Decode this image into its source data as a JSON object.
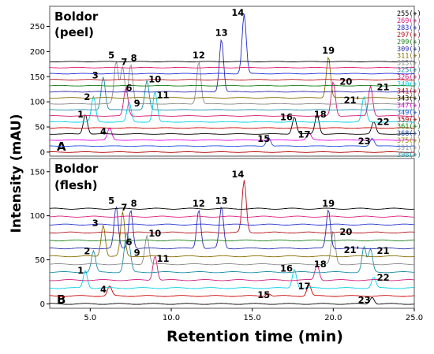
{
  "figure": {
    "y_axis_label": "Intensity (mAU)",
    "x_axis_label": "Retention time (min)"
  },
  "legend": [
    {
      "label": "255(+)",
      "color": "#000000"
    },
    {
      "label": "269(+)",
      "color": "#e0197d"
    },
    {
      "label": "283(+)",
      "color": "#1f2bd1"
    },
    {
      "label": "297(+)",
      "color": "#b5121b"
    },
    {
      "label": "299(+)",
      "color": "#1a7f1a"
    },
    {
      "label": "309(+)",
      "color": "#2b2bb0"
    },
    {
      "label": "311(+)",
      "color": "#8a6d00"
    },
    {
      "label": "313(+)",
      "color": "#8c8c8c"
    },
    {
      "label": "325(+)",
      "color": "#1d8fa6"
    },
    {
      "label": "326(+)",
      "color": "#d11a7a"
    },
    {
      "label": "340(+)",
      "color": "#00d0e8"
    },
    {
      "label": "341(+)",
      "color": "#cc0000"
    },
    {
      "label": "343(+)",
      "color": "#000000"
    },
    {
      "label": "347(+)",
      "color": "#e600e6"
    },
    {
      "label": "349(+)",
      "color": "#1f4de0"
    },
    {
      "label": "359(+)",
      "color": "#b50000"
    },
    {
      "label": "361(+)",
      "color": "#008000"
    },
    {
      "label": "368(+)",
      "color": "#1c3f99"
    },
    {
      "label": "375(+)",
      "color": "#9a8a00"
    },
    {
      "label": "391(+)",
      "color": "#999999"
    },
    {
      "label": "398(+)",
      "color": "#0097a7"
    }
  ],
  "chart_data": [
    {
      "type": "line",
      "title": "Boldor\n(peel)",
      "panel_letter": "A",
      "xlabel": "Retention time (min)",
      "ylabel": "Intensity (mAU)",
      "xlim": [
        2.5,
        25
      ],
      "ylim": [
        -8,
        290
      ],
      "yticks": [
        0,
        50,
        100,
        150,
        200,
        250
      ],
      "trace_offsets": [
        0,
        12,
        24,
        36,
        48,
        60,
        72,
        84,
        96,
        108,
        120,
        132,
        144,
        156,
        168,
        180
      ],
      "peaks": [
        {
          "label": "1",
          "rt": 4.7,
          "height": 75
        },
        {
          "label": "2",
          "rt": 5.2,
          "height": 110
        },
        {
          "label": "3",
          "rt": 5.8,
          "height": 150
        },
        {
          "label": "4",
          "rt": 6.2,
          "height": 48
        },
        {
          "label": "5",
          "rt": 6.6,
          "height": 180
        },
        {
          "label": "6",
          "rt": 7.2,
          "height": 128
        },
        {
          "label": "7",
          "rt": 7.0,
          "height": 170
        },
        {
          "label": "8",
          "rt": 7.5,
          "height": 175
        },
        {
          "label": "9",
          "rt": 7.4,
          "height": 100
        },
        {
          "label": "10",
          "rt": 8.5,
          "height": 142
        },
        {
          "label": "11",
          "rt": 9.0,
          "height": 120
        },
        {
          "label": "12",
          "rt": 11.7,
          "height": 180
        },
        {
          "label": "13",
          "rt": 13.1,
          "height": 225
        },
        {
          "label": "14",
          "rt": 14.5,
          "height": 275
        },
        {
          "label": "15",
          "rt": 16.0,
          "height": 30
        },
        {
          "label": "16",
          "rt": 17.6,
          "height": 70
        },
        {
          "label": "17",
          "rt": 18.5,
          "height": 38
        },
        {
          "label": "18",
          "rt": 19.0,
          "height": 75
        },
        {
          "label": "19",
          "rt": 19.7,
          "height": 190
        },
        {
          "label": "20",
          "rt": 20.0,
          "height": 140
        },
        {
          "label": "21",
          "rt": 22.3,
          "height": 132
        },
        {
          "label": "21'",
          "rt": 21.9,
          "height": 110
        },
        {
          "label": "22",
          "rt": 22.5,
          "height": 60
        },
        {
          "label": "23",
          "rt": 22.4,
          "height": 28
        }
      ]
    },
    {
      "type": "line",
      "title": "Boldor\n(flesh)",
      "panel_letter": "B",
      "xlabel": "Retention time (min)",
      "ylabel": "Intensity (mAU)",
      "xlim": [
        2.5,
        25
      ],
      "ylim": [
        -5,
        165
      ],
      "yticks": [
        0,
        50,
        100,
        150
      ],
      "xticks": [
        5.0,
        10.0,
        15.0,
        20.0,
        25.0
      ],
      "xtick_labels": [
        "5.0",
        "10.0",
        "15.0",
        "20.0",
        "25.0"
      ],
      "trace_offsets": [
        0,
        9,
        18,
        27,
        36,
        45,
        54,
        63,
        72,
        81,
        90,
        99,
        108
      ],
      "peaks": [
        {
          "label": "1",
          "rt": 4.7,
          "height": 38
        },
        {
          "label": "2",
          "rt": 5.2,
          "height": 60
        },
        {
          "label": "3",
          "rt": 5.8,
          "height": 90
        },
        {
          "label": "4",
          "rt": 6.2,
          "height": 20
        },
        {
          "label": "5",
          "rt": 6.6,
          "height": 110
        },
        {
          "label": "6",
          "rt": 7.2,
          "height": 70
        },
        {
          "label": "7",
          "rt": 7.0,
          "height": 104
        },
        {
          "label": "8",
          "rt": 7.5,
          "height": 107
        },
        {
          "label": "9",
          "rt": 7.4,
          "height": 60
        },
        {
          "label": "10",
          "rt": 8.5,
          "height": 78
        },
        {
          "label": "11",
          "rt": 9.0,
          "height": 55
        },
        {
          "label": "12",
          "rt": 11.7,
          "height": 107
        },
        {
          "label": "13",
          "rt": 13.1,
          "height": 110
        },
        {
          "label": "14",
          "rt": 14.5,
          "height": 140
        },
        {
          "label": "15",
          "rt": 16.0,
          "height": 12
        },
        {
          "label": "16",
          "rt": 17.6,
          "height": 40
        },
        {
          "label": "17",
          "rt": 18.5,
          "height": 22
        },
        {
          "label": "18",
          "rt": 19.0,
          "height": 45
        },
        {
          "label": "19",
          "rt": 19.7,
          "height": 107
        },
        {
          "label": "20",
          "rt": 20.0,
          "height": 82
        },
        {
          "label": "21",
          "rt": 22.3,
          "height": 62
        },
        {
          "label": "21'",
          "rt": 21.9,
          "height": 65
        },
        {
          "label": "22",
          "rt": 22.5,
          "height": 30
        },
        {
          "label": "23",
          "rt": 22.4,
          "height": 8
        }
      ]
    }
  ]
}
